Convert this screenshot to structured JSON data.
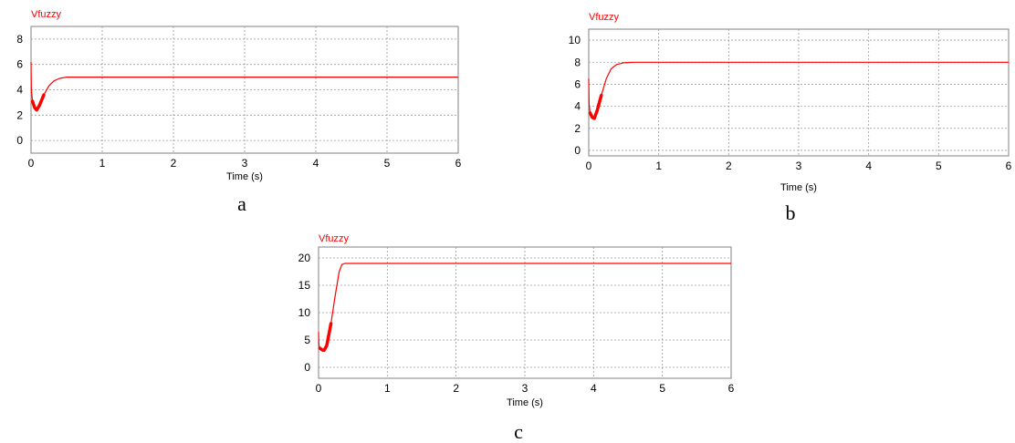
{
  "accent_color": "#ff0000",
  "chart_data": [
    {
      "type": "line",
      "panel": "a",
      "title": "Vfuzzy",
      "xlabel": "Time (s)",
      "ylabel": "",
      "xlim": [
        0,
        6
      ],
      "ylim": [
        -1,
        9
      ],
      "xticks": [
        0,
        1,
        2,
        3,
        4,
        5,
        6
      ],
      "yticks": [
        0,
        2,
        4,
        6,
        8
      ],
      "grid": true,
      "series": [
        {
          "color": "#ff0000",
          "x": [
            0,
            0.005,
            0.02,
            0.05,
            0.08,
            0.12,
            0.18,
            0.25,
            0.32,
            0.4,
            0.5,
            0.6,
            6
          ],
          "y": [
            6.2,
            4.0,
            3.1,
            2.6,
            2.4,
            2.8,
            3.6,
            4.3,
            4.7,
            4.9,
            5.0,
            5.0,
            5.0
          ]
        }
      ]
    },
    {
      "type": "line",
      "panel": "b",
      "title": "Vfuzzy",
      "xlabel": "Time (s)",
      "ylabel": "",
      "xlim": [
        0,
        6
      ],
      "ylim": [
        -0.5,
        11
      ],
      "xticks": [
        0,
        1,
        2,
        3,
        4,
        5,
        6
      ],
      "yticks": [
        0,
        2,
        4,
        6,
        8,
        10
      ],
      "grid": true,
      "series": [
        {
          "color": "#ff0000",
          "x": [
            0,
            0.005,
            0.02,
            0.05,
            0.08,
            0.12,
            0.18,
            0.25,
            0.32,
            0.4,
            0.5,
            0.65,
            6
          ],
          "y": [
            6.5,
            4.2,
            3.4,
            3.0,
            2.9,
            3.6,
            5.0,
            6.5,
            7.4,
            7.8,
            7.95,
            8.0,
            8.0
          ]
        }
      ]
    },
    {
      "type": "line",
      "panel": "c",
      "title": "Vfuzzy",
      "xlabel": "Time (s)",
      "ylabel": "",
      "xlim": [
        0,
        6
      ],
      "ylim": [
        -2,
        22
      ],
      "xticks": [
        0,
        1,
        2,
        3,
        4,
        5,
        6
      ],
      "yticks": [
        0,
        5,
        10,
        15,
        20
      ],
      "grid": true,
      "series": [
        {
          "color": "#ff0000",
          "x": [
            0,
            0.005,
            0.02,
            0.05,
            0.08,
            0.12,
            0.18,
            0.24,
            0.3,
            0.34,
            0.38,
            6
          ],
          "y": [
            6.5,
            4.0,
            3.5,
            3.2,
            3.1,
            4.0,
            8.0,
            13.0,
            17.5,
            18.8,
            19.0,
            19.0
          ]
        }
      ]
    }
  ]
}
